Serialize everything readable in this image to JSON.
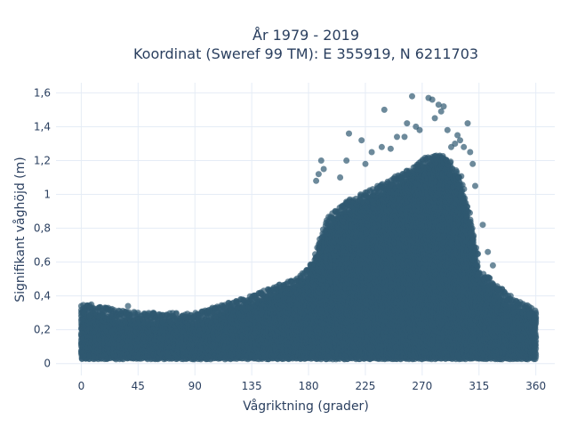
{
  "chart_data": {
    "type": "scatter",
    "title_lines": [
      "År 1979 - 2019",
      "Koordinat (Sweref 99 TM): E 355919, N 6211703"
    ],
    "xlabel": "Vågriktning (grader)",
    "ylabel": "Signifikant våghöjd (m)",
    "xlim": [
      -20,
      375
    ],
    "ylim": [
      -0.07,
      1.66
    ],
    "xticks": [
      0,
      45,
      90,
      135,
      180,
      225,
      270,
      315,
      360
    ],
    "xtick_labels": [
      "0",
      "45",
      "90",
      "135",
      "180",
      "225",
      "270",
      "315",
      "360"
    ],
    "yticks": [
      0,
      0.2,
      0.4,
      0.6,
      0.8,
      1.0,
      1.2,
      1.4,
      1.6
    ],
    "ytick_labels": [
      "0",
      "0,2",
      "0,4",
      "0,6",
      "0,8",
      "1",
      "1,2",
      "1,4",
      "1,6"
    ],
    "grid": true,
    "marker_color": "#2f5870",
    "marker_opacity": 0.7,
    "plot_background": "#ffffff",
    "grid_color": "#e5ecf6",
    "series": [
      {
        "envelope_upper": [
          [
            0,
            0.3
          ],
          [
            20,
            0.27
          ],
          [
            45,
            0.24
          ],
          [
            90,
            0.24
          ],
          [
            135,
            0.34
          ],
          [
            170,
            0.45
          ],
          [
            180,
            0.5
          ],
          [
            195,
            0.8
          ],
          [
            210,
            0.9
          ],
          [
            225,
            0.95
          ],
          [
            250,
            1.05
          ],
          [
            270,
            1.15
          ],
          [
            285,
            1.2
          ],
          [
            300,
            1.05
          ],
          [
            310,
            0.75
          ],
          [
            315,
            0.5
          ],
          [
            340,
            0.33
          ],
          [
            360,
            0.27
          ]
        ],
        "outliers": [
          [
            0,
            0.34
          ],
          [
            17,
            0.31
          ],
          [
            37,
            0.34
          ],
          [
            45,
            0.3
          ],
          [
            80,
            0.28
          ],
          [
            118,
            0.33
          ],
          [
            128,
            0.33
          ],
          [
            186,
            1.08
          ],
          [
            188,
            1.12
          ],
          [
            190,
            1.2
          ],
          [
            192,
            1.15
          ],
          [
            205,
            1.1
          ],
          [
            210,
            1.2
          ],
          [
            212,
            1.36
          ],
          [
            222,
            1.32
          ],
          [
            225,
            1.18
          ],
          [
            230,
            1.25
          ],
          [
            238,
            1.28
          ],
          [
            240,
            1.5
          ],
          [
            245,
            1.27
          ],
          [
            250,
            1.34
          ],
          [
            256,
            1.34
          ],
          [
            258,
            1.42
          ],
          [
            262,
            1.58
          ],
          [
            265,
            1.4
          ],
          [
            268,
            1.38
          ],
          [
            275,
            1.57
          ],
          [
            278,
            1.56
          ],
          [
            280,
            1.45
          ],
          [
            283,
            1.53
          ],
          [
            285,
            1.49
          ],
          [
            287,
            1.52
          ],
          [
            290,
            1.38
          ],
          [
            293,
            1.28
          ],
          [
            296,
            1.3
          ],
          [
            298,
            1.35
          ],
          [
            300,
            1.32
          ],
          [
            303,
            1.28
          ],
          [
            306,
            1.42
          ],
          [
            308,
            1.25
          ],
          [
            310,
            1.18
          ],
          [
            312,
            1.05
          ],
          [
            318,
            0.82
          ],
          [
            322,
            0.66
          ],
          [
            326,
            0.58
          ],
          [
            330,
            0.44
          ],
          [
            340,
            0.4
          ],
          [
            345,
            0.36
          ],
          [
            355,
            0.29
          ]
        ]
      }
    ]
  }
}
